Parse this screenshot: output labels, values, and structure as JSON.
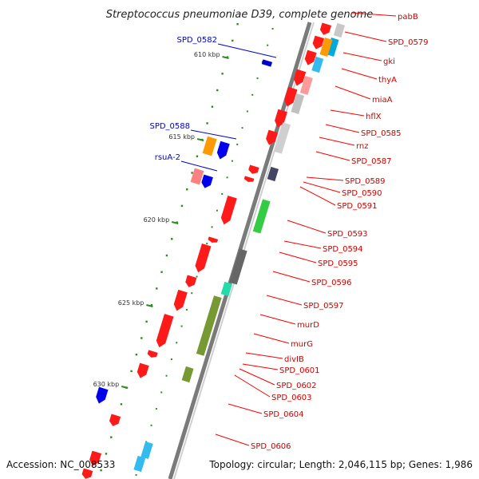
{
  "title": "Streptococcus pneumoniae D39, complete genome",
  "footer": {
    "accession": "Accession: NC_008533",
    "topology": "Topology: circular; Length: 2,046,115 bp; Genes: 1,986"
  },
  "kbp_marks": [
    "610 kbp",
    "615 kbp",
    "620 kbp",
    "625 kbp",
    "630 kbp"
  ],
  "colors": {
    "forward_strand": "#0000cc",
    "reverse_strand": "#ff0000",
    "backbone": "#7a7a7a",
    "tick": "#2e8b22"
  },
  "left_labels": [
    "SPD_0582",
    "SPD_0588",
    "rsuA-2"
  ],
  "right_labels": [
    "pabB",
    "SPD_0579",
    "gki",
    "thyA",
    "miaA",
    "hflX",
    "SPD_0585",
    "rnz",
    "SPD_0587",
    "SPD_0589",
    "SPD_0590",
    "SPD_0591",
    "SPD_0593",
    "SPD_0594",
    "SPD_0595",
    "SPD_0596",
    "SPD_0597",
    "murD",
    "murG",
    "divIB",
    "SPD_0601",
    "SPD_0602",
    "SPD_0603",
    "SPD_0604",
    "SPD_0606"
  ]
}
